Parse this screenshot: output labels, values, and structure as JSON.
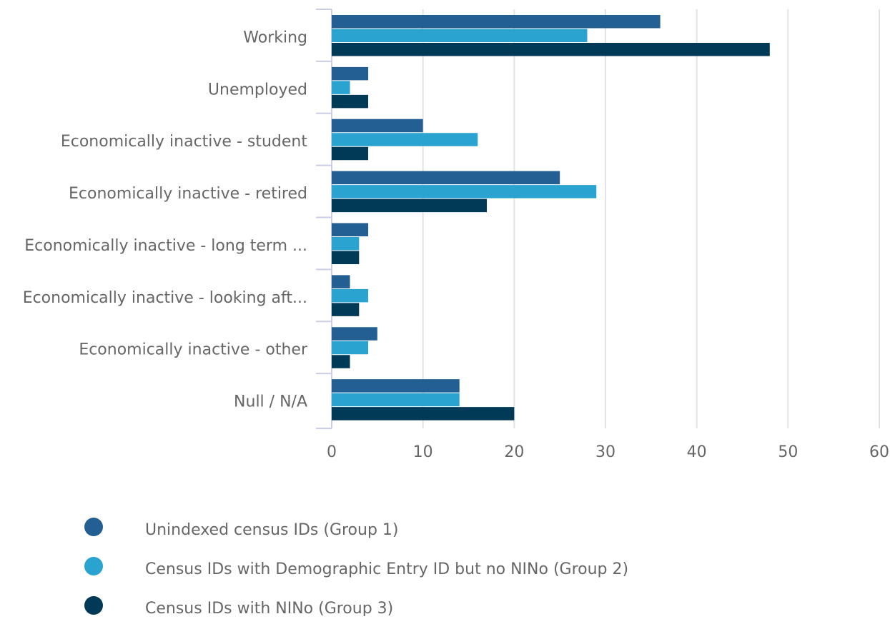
{
  "chart_data": {
    "type": "hbar",
    "categories": [
      "Working",
      "Unemployed",
      "Economically inactive - student",
      "Economically inactive - retired",
      "Economically inactive - long term ...",
      "Economically inactive - looking aft...",
      "Economically inactive - other",
      "Null / N/A"
    ],
    "series": [
      {
        "name": "Unindexed census IDs (Group 1)",
        "color": "#235f93",
        "values": [
          36,
          4,
          10,
          25,
          4,
          2,
          5,
          14
        ]
      },
      {
        "name": "Census IDs with Demographic Entry ID but no NINo (Group 2)",
        "color": "#2aa3d1",
        "values": [
          28,
          2,
          16,
          29,
          3,
          4,
          4,
          14
        ]
      },
      {
        "name": "Census IDs with NINo (Group 3)",
        "color": "#003a57",
        "values": [
          48,
          4,
          4,
          17,
          3,
          3,
          2,
          20
        ]
      }
    ],
    "xlim": [
      0,
      60
    ],
    "xticks": [
      0,
      10,
      20,
      30,
      40,
      50,
      60
    ],
    "grid": true
  }
}
